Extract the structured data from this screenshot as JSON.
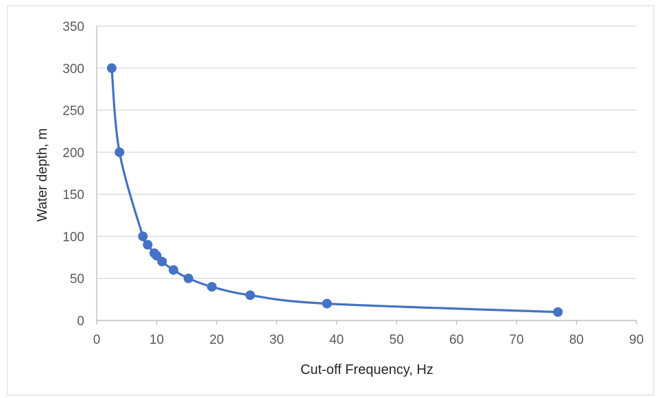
{
  "chart_data": {
    "type": "scatter",
    "title": "",
    "xlabel": "Cut-off Frequency, Hz",
    "ylabel": "Water depth, m",
    "xlim": [
      0,
      90
    ],
    "ylim": [
      0,
      350
    ],
    "xticks": [
      0,
      10,
      20,
      30,
      40,
      50,
      60,
      70,
      80,
      90
    ],
    "yticks": [
      0,
      50,
      100,
      150,
      200,
      250,
      300,
      350
    ],
    "grid": "horizontal",
    "legend": "none",
    "line_style": "smooth",
    "color": "#4472C4",
    "series": [
      {
        "x": [
          2.5,
          3.8,
          7.7,
          8.5,
          9.6,
          10.0,
          10.9,
          12.8,
          15.3,
          19.2,
          25.6,
          38.4,
          76.9
        ],
        "y": [
          300,
          200,
          100,
          90,
          80,
          77,
          70,
          60,
          50,
          40,
          30,
          20,
          10
        ]
      }
    ]
  }
}
